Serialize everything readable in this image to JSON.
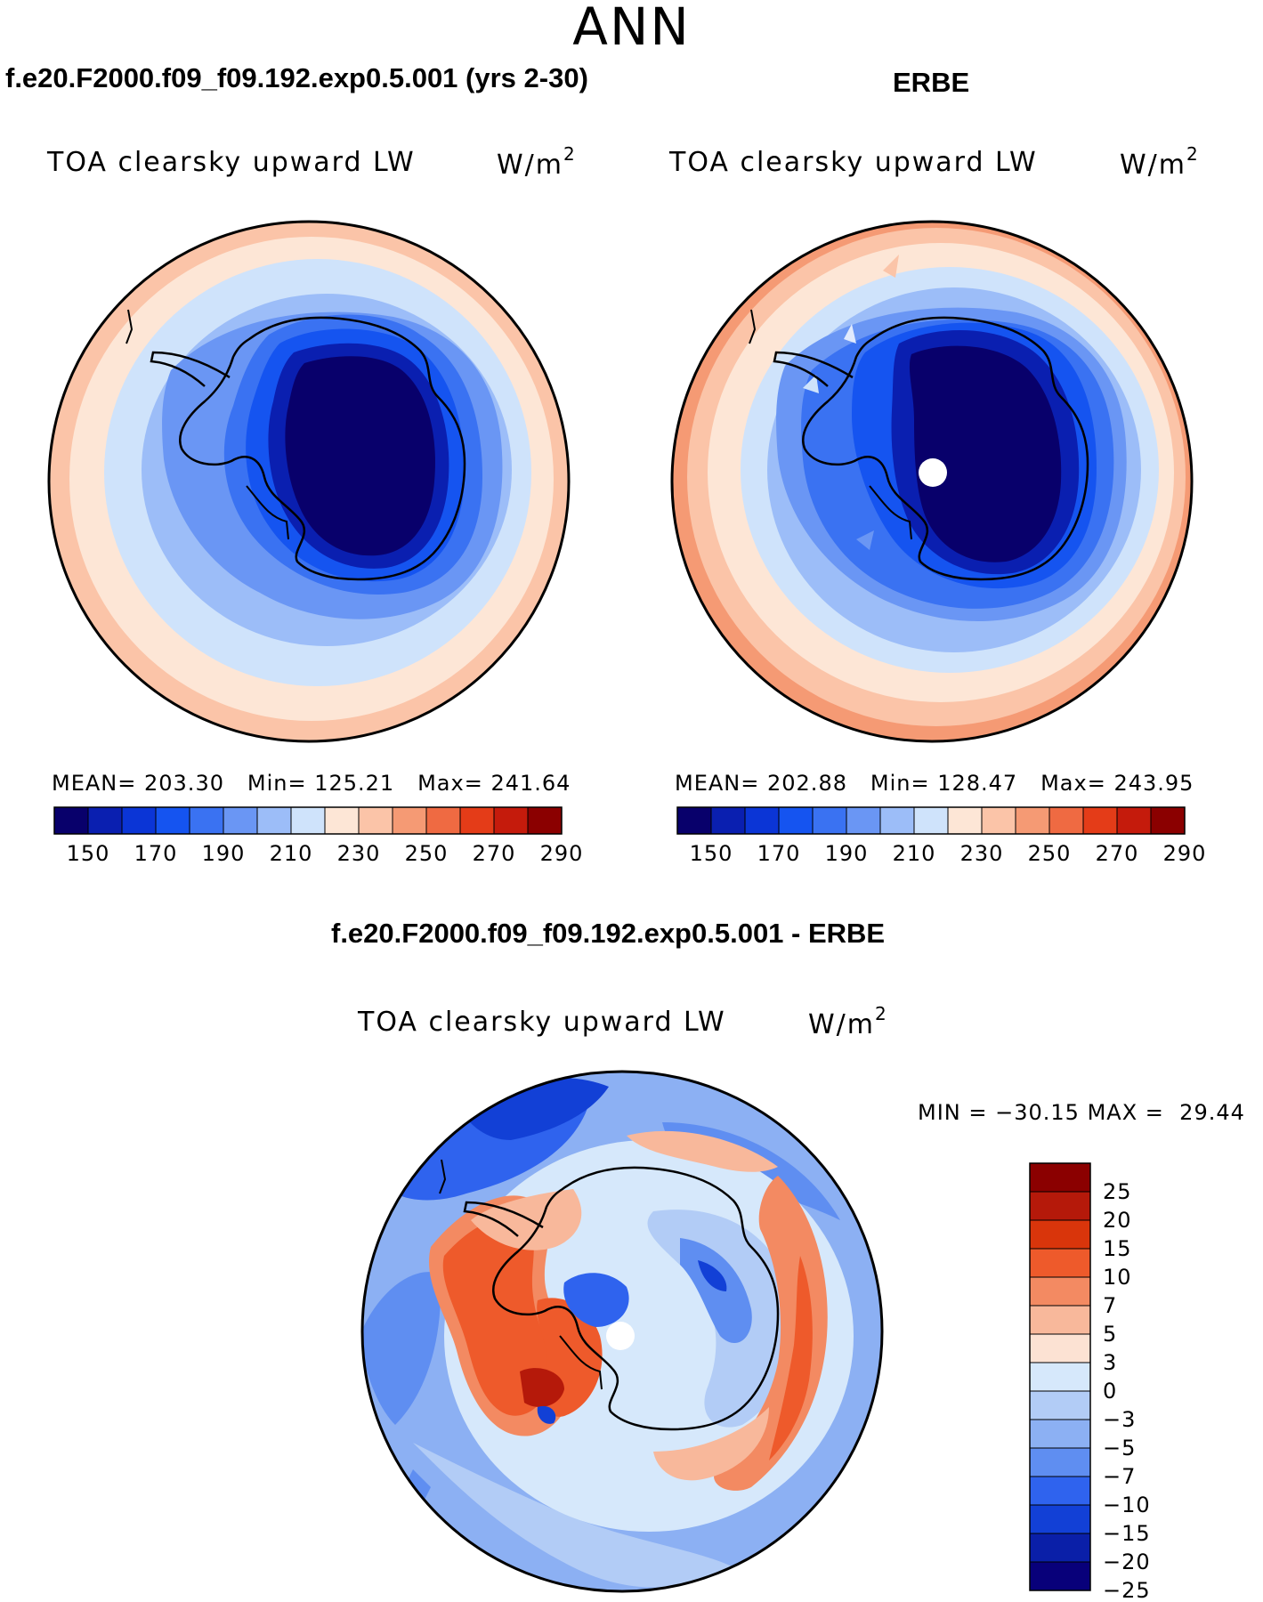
{
  "season": "ANN",
  "colors": {
    "seq_palette": [
      "#08006b",
      "#0a1fb0",
      "#0b35d6",
      "#1554f0",
      "#3a72f2",
      "#6a96f4",
      "#9cbdf8",
      "#cfe3fb",
      "#fde6d6",
      "#fbc4a8",
      "#f59a74",
      "#ef6a42",
      "#e43c18",
      "#c51b0c",
      "#8b0000"
    ],
    "div_palette": [
      "#8b0000",
      "#b5190a",
      "#d9350b",
      "#ee5a2b",
      "#f38a62",
      "#f8b89b",
      "#fce2d3",
      "#d6e8fb",
      "#b2ccf6",
      "#8cb0f3",
      "#5f8ef1",
      "#2f63ee",
      "#1240d6",
      "#0a1fa8",
      "#08007a"
    ]
  },
  "chart_data": [
    {
      "type": "heatmap",
      "map_projection": "south polar stereographic",
      "title": "f.e20.F2000.f09_f09.192.exp0.5.001 (yrs 2-30)",
      "variable_label": "TOA clearsky upward LW",
      "units": "W/m",
      "units_exp": "2",
      "stats": {
        "mean_label": "MEAN=",
        "mean": "203.30",
        "min_label": "Min=",
        "min": "125.21",
        "max_label": "Max=",
        "max": "241.64"
      },
      "colorbar_ticks": [
        "150",
        "170",
        "190",
        "210",
        "230",
        "250",
        "270",
        "290"
      ]
    },
    {
      "type": "heatmap",
      "map_projection": "south polar stereographic",
      "title": "ERBE",
      "variable_label": "TOA clearsky upward LW",
      "units": "W/m",
      "units_exp": "2",
      "stats": {
        "mean_label": "MEAN=",
        "mean": "202.88",
        "min_label": "Min=",
        "min": "128.47",
        "max_label": "Max=",
        "max": "243.95"
      },
      "colorbar_ticks": [
        "150",
        "170",
        "190",
        "210",
        "230",
        "250",
        "270",
        "290"
      ]
    },
    {
      "type": "heatmap",
      "map_projection": "south polar stereographic",
      "title": "f.e20.F2000.f09_f09.192.exp0.5.001 - ERBE",
      "variable_label": "TOA clearsky upward LW",
      "units": "W/m",
      "units_exp": "2",
      "stats": {
        "min_label": "MIN =",
        "min": "−30.15",
        "max_label": "MAX =",
        "max": "29.44"
      },
      "colorbar_ticks": [
        "25",
        "20",
        "15",
        "10",
        "7",
        "5",
        "3",
        "0",
        "−3",
        "−5",
        "−7",
        "−10",
        "−15",
        "−20",
        "−25"
      ]
    }
  ]
}
